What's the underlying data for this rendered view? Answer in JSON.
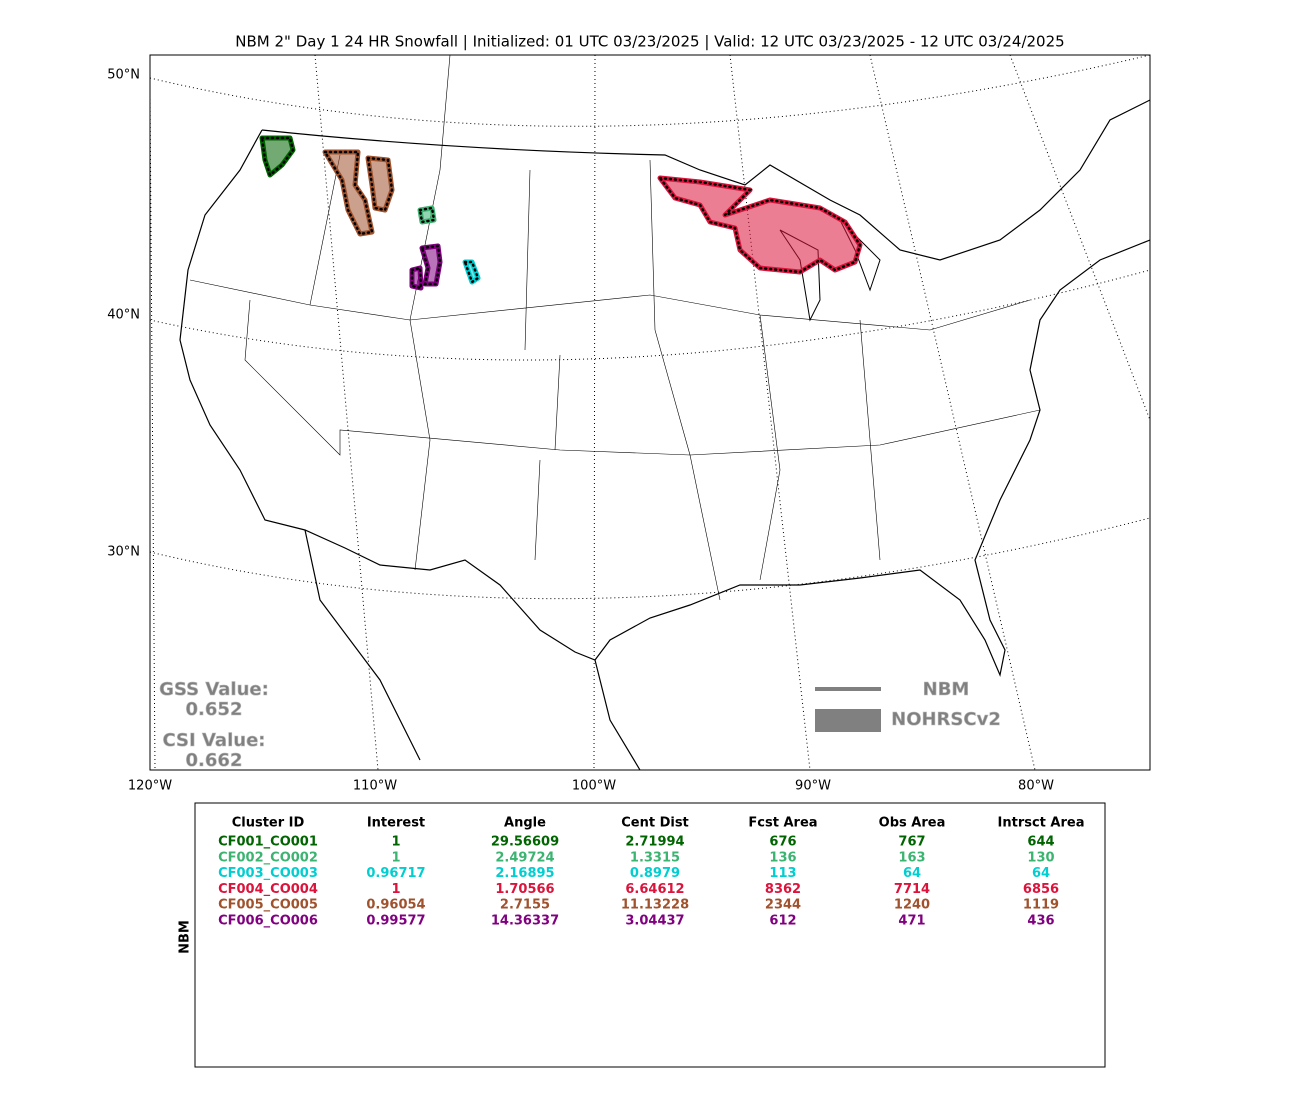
{
  "title": "NBM 2\" Day 1 24 HR Snowfall | Initialized: 01 UTC 03/23/2025 | Valid: 12 UTC 03/23/2025 - 12 UTC 03/24/2025",
  "map": {
    "lat_labels": [
      "50°N",
      "40°N",
      "30°N"
    ],
    "lon_labels": [
      "120°W",
      "110°W",
      "100°W",
      "90°W",
      "80°W"
    ],
    "stats": {
      "gss_label": "GSS Value:",
      "gss_value": "0.652",
      "csi_label": "CSI Value:",
      "csi_value": "0.662"
    },
    "legend": {
      "forecast": "NBM",
      "observed": "NOHRSCv2"
    }
  },
  "table": {
    "side_label": "NBM",
    "headers": [
      "Cluster ID",
      "Interest",
      "Angle",
      "Cent Dist",
      "Fcst Area",
      "Obs Area",
      "Intrsct Area"
    ],
    "rows": [
      {
        "color": "#006400",
        "cells": [
          "CF001_CO001",
          "1",
          "29.56609",
          "2.71994",
          "676",
          "767",
          "644"
        ]
      },
      {
        "color": "#3cb371",
        "cells": [
          "CF002_CO002",
          "1",
          "2.49724",
          "1.3315",
          "136",
          "163",
          "130"
        ]
      },
      {
        "color": "#00ced1",
        "cells": [
          "CF003_CO003",
          "0.96717",
          "2.16895",
          "0.8979",
          "113",
          "64",
          "64"
        ]
      },
      {
        "color": "#dc143c",
        "cells": [
          "CF004_CO004",
          "1",
          "1.70566",
          "6.64612",
          "8362",
          "7714",
          "6856"
        ]
      },
      {
        "color": "#a0522d",
        "cells": [
          "CF005_CO005",
          "0.96054",
          "2.7155",
          "11.13228",
          "2344",
          "1240",
          "1119"
        ]
      },
      {
        "color": "#800080",
        "cells": [
          "CF006_CO006",
          "0.99577",
          "14.36337",
          "3.04437",
          "612",
          "471",
          "436"
        ]
      }
    ]
  }
}
